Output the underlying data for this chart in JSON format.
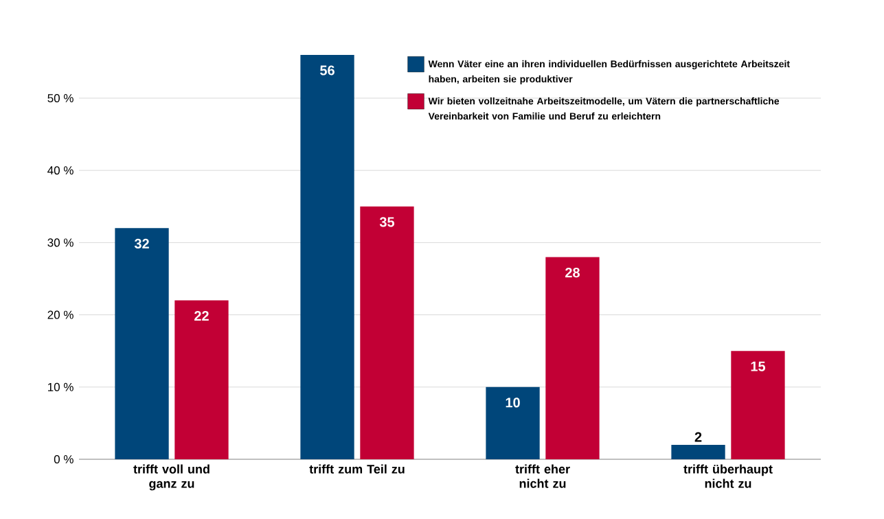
{
  "chart_data": {
    "type": "bar",
    "categories": [
      "trifft voll und ganz zu",
      "trifft zum Teil zu",
      "trifft eher nicht zu",
      "trifft überhaupt nicht zu"
    ],
    "series": [
      {
        "name": "Wenn Väter eine an ihren individuellen Bedürfnissen ausgerichtete Arbeitszeit haben, arbeiten sie produktiver",
        "color": "#00467a",
        "values": [
          32,
          56,
          10,
          2
        ]
      },
      {
        "name": "Wir bieten vollzeitnahe Arbeitszeitmodelle, um Vätern die partnerschaftliche Vereinbarkeit von Familie und Beruf zu erleichtern",
        "color": "#c20035",
        "values": [
          22,
          35,
          28,
          15
        ]
      }
    ],
    "ylim": [
      0,
      56
    ],
    "yticks": [
      {
        "value": 0,
        "label": "0 %"
      },
      {
        "value": 10,
        "label": "10 %"
      },
      {
        "value": 20,
        "label": "20 %"
      },
      {
        "value": 30,
        "label": "30 %"
      },
      {
        "value": 40,
        "label": "40 %"
      },
      {
        "value": 50,
        "label": "50 %"
      }
    ],
    "grid": "y",
    "legend": "top right",
    "data_labels": true
  }
}
